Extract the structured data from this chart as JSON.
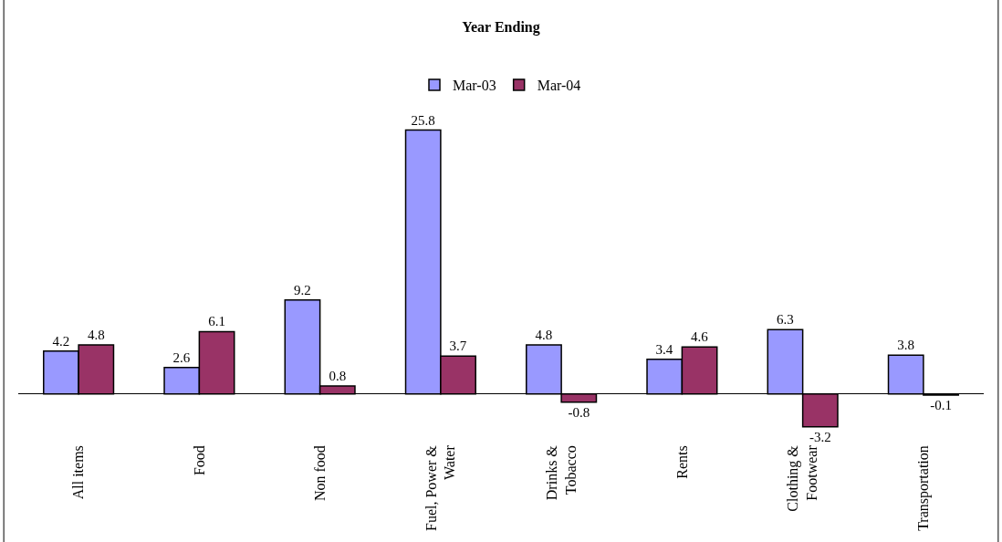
{
  "chart_data": {
    "type": "bar",
    "title": "Year Ending",
    "categories": [
      "All items",
      "Food",
      "Non food",
      "Fuel, Power &\nWater",
      "Drinks &\nTobacco",
      "Rents",
      "Clothing &\nFootwear",
      "Transportation"
    ],
    "series": [
      {
        "name": "Mar-03",
        "color": "#9999ff",
        "values": [
          4.2,
          2.6,
          9.2,
          25.8,
          4.8,
          3.4,
          6.3,
          3.8
        ]
      },
      {
        "name": "Mar-04",
        "color": "#993366",
        "values": [
          4.8,
          6.1,
          0.8,
          3.7,
          -0.8,
          4.6,
          -3.2,
          -0.1
        ]
      }
    ],
    "data_labels": true,
    "legend": "top"
  }
}
